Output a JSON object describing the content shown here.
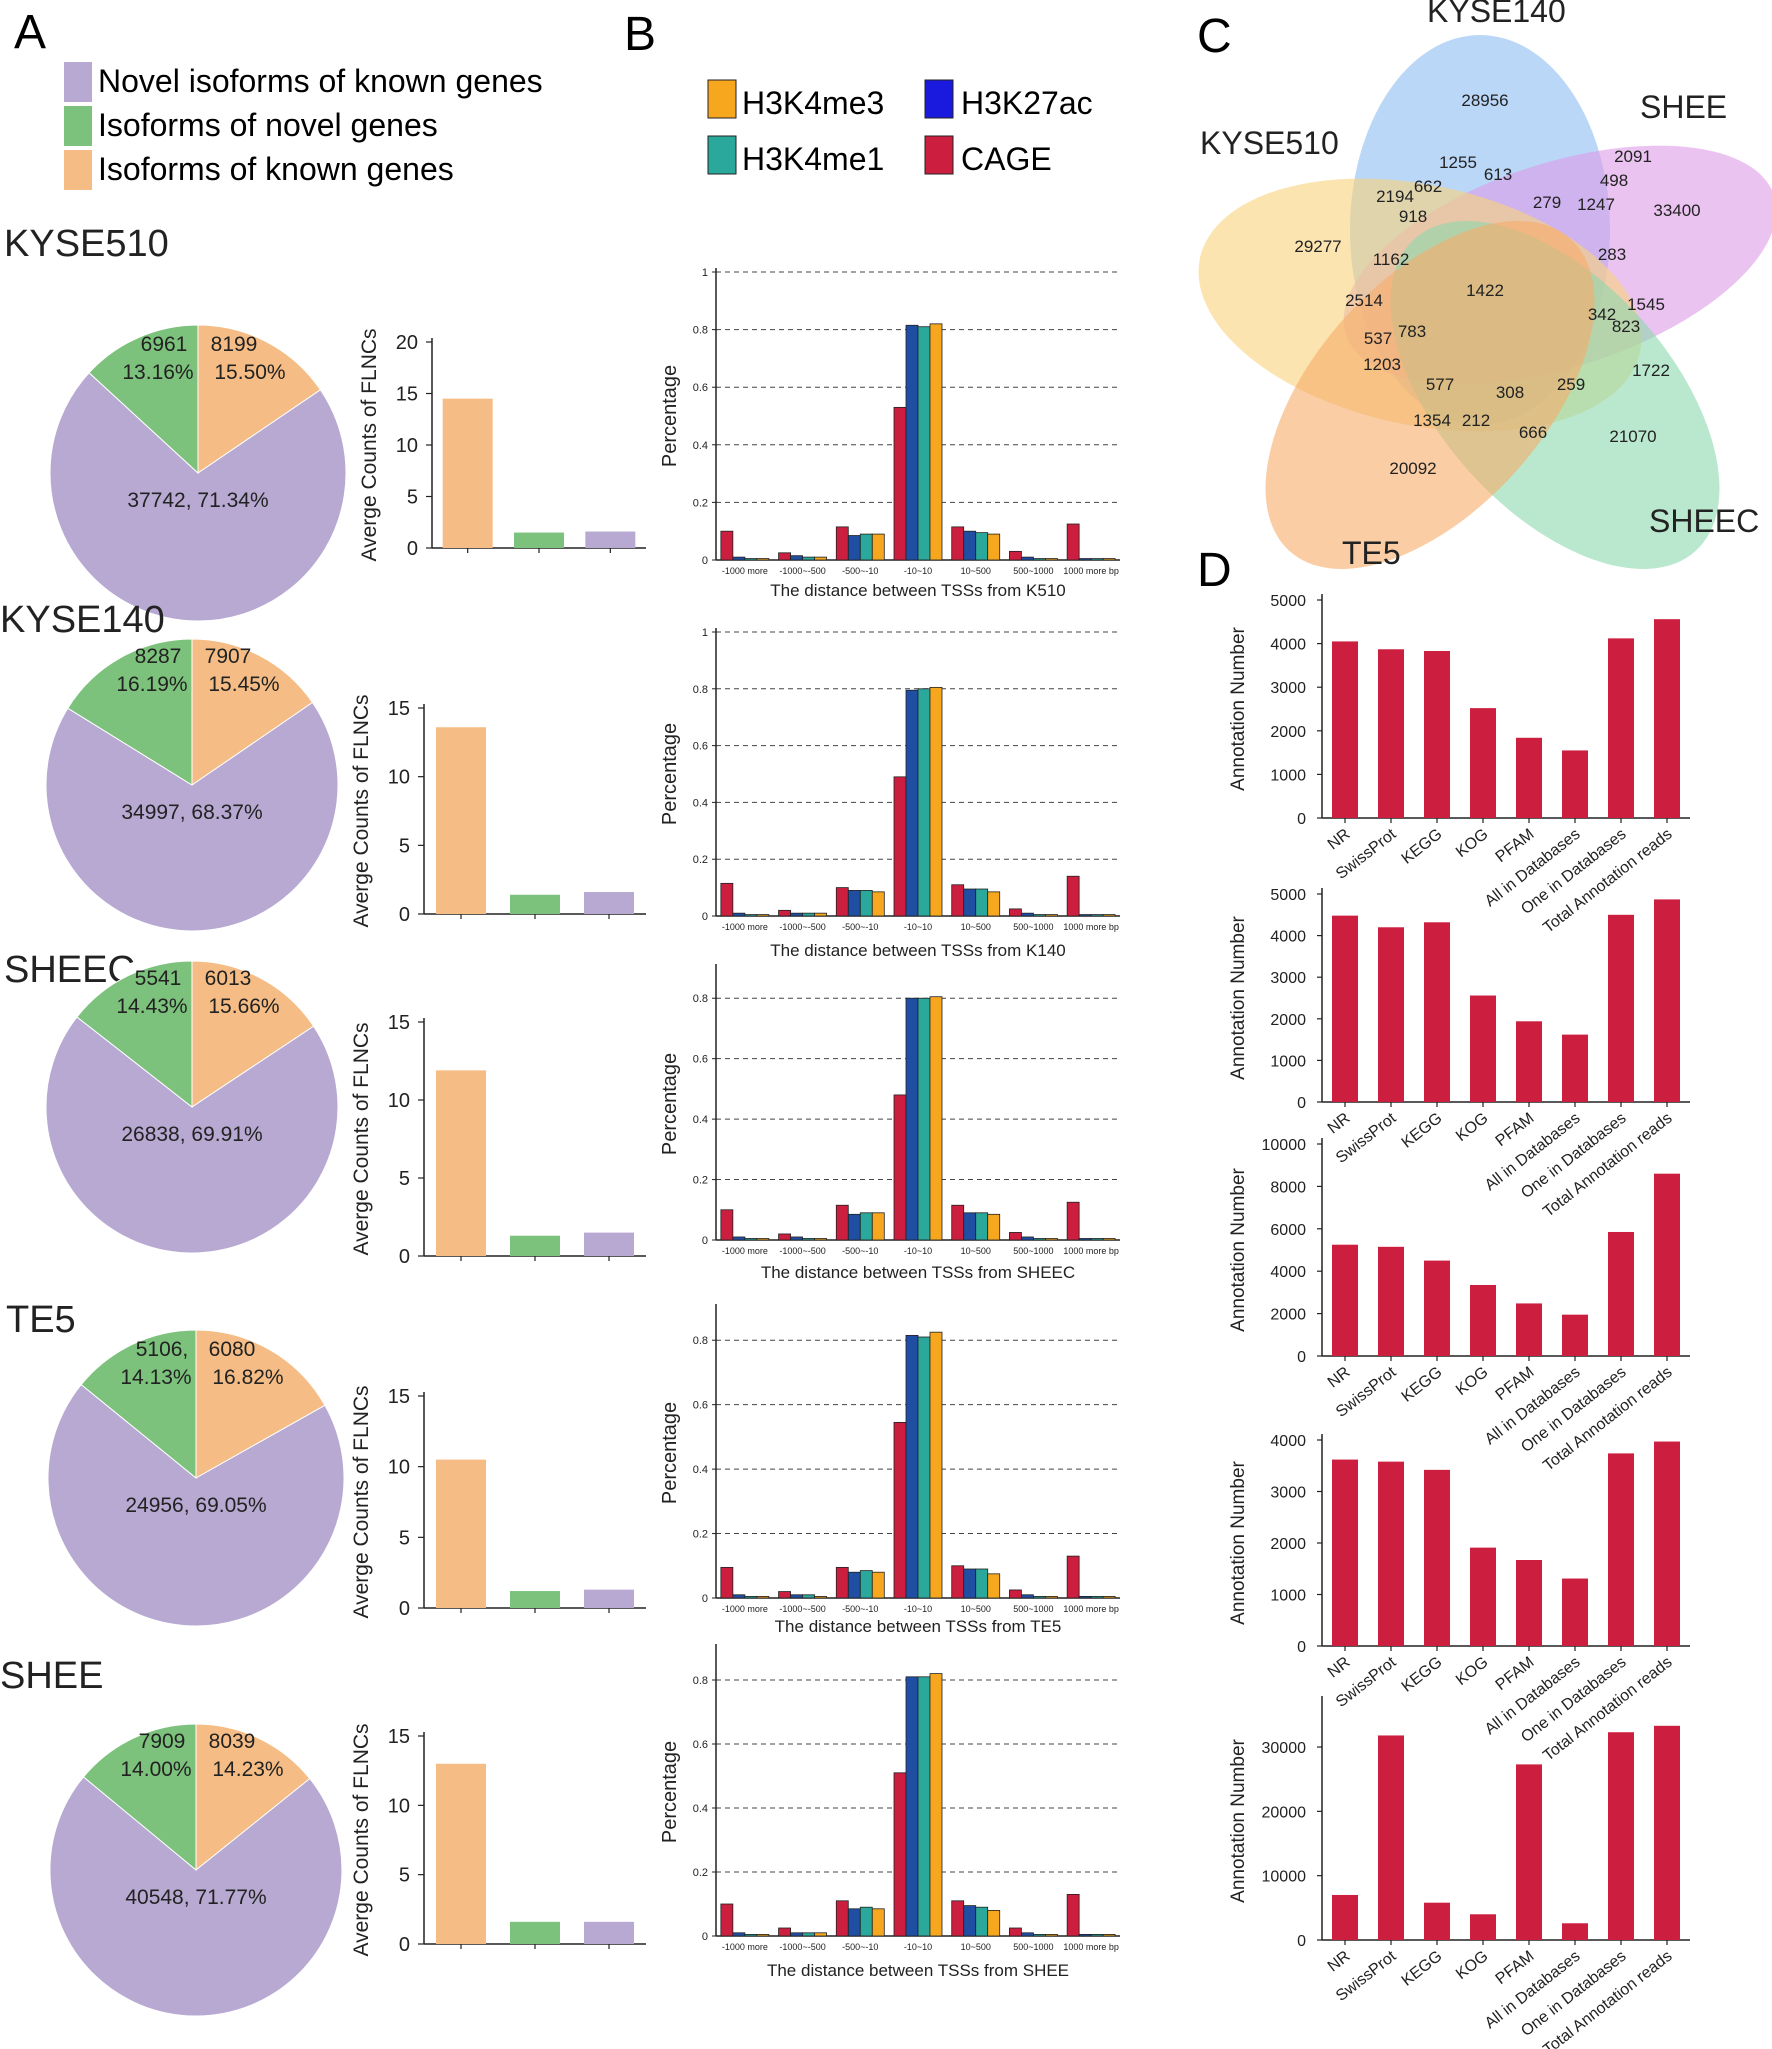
{
  "panel_letters": [
    "A",
    "B",
    "C",
    "D"
  ],
  "colors": {
    "novel_isoforms": "#b7a9d2",
    "novel_genes": "#7cc27c",
    "known_genes": "#f5bd85",
    "h3k4me3": "#f6a71e",
    "h3k27ac": "#1f4ea3",
    "h3k4me1": "#2aa89b",
    "cage": "#cc1f40",
    "annotation_bar": "#cc1f40"
  },
  "legend_a": [
    {
      "label": "Novel isoforms of known genes",
      "color_key": "novel_isoforms"
    },
    {
      "label": "Isoforms of novel genes",
      "color_key": "novel_genes"
    },
    {
      "label": "Isoforms of known genes",
      "color_key": "known_genes"
    }
  ],
  "legend_b": [
    {
      "label": "H3K4me3",
      "color_key": "h3k4me3"
    },
    {
      "label": "H3K27ac",
      "color_key": "h3k27ac"
    },
    {
      "label": "H3K4me1",
      "color_key": "h3k4me1"
    },
    {
      "label": "CAGE",
      "color_key": "cage"
    }
  ],
  "chart_data": [
    {
      "panel": "A",
      "type": "pie",
      "title": "KYSE510",
      "slices": [
        {
          "name": "Novel isoforms of known genes",
          "value": 37742,
          "percent": 71.34,
          "label": "37742, 71.34%"
        },
        {
          "name": "Isoforms of novel genes",
          "value": 6961,
          "percent": 13.16,
          "label_lines": [
            "6961",
            "13.16%"
          ]
        },
        {
          "name": "Isoforms of known genes",
          "value": 8199,
          "percent": 15.5,
          "label_lines": [
            "8199",
            "15.50%"
          ]
        }
      ]
    },
    {
      "panel": "A",
      "type": "bar",
      "ylabel": "Averge Counts of FLNCs",
      "yticks": [
        0,
        5,
        10,
        15,
        20
      ],
      "ylim": [
        0,
        20
      ],
      "categories": [
        "Isoforms of known genes",
        "Isoforms of novel genes",
        "Novel isoforms of known genes"
      ],
      "values": [
        14.5,
        1.5,
        1.6
      ]
    },
    {
      "panel": "A",
      "type": "pie",
      "title": "KYSE140",
      "slices": [
        {
          "name": "Novel isoforms of known genes",
          "value": 34997,
          "percent": 68.37,
          "label": "34997, 68.37%"
        },
        {
          "name": "Isoforms of novel genes",
          "value": 8287,
          "percent": 16.19,
          "label_lines": [
            "8287",
            "16.19%"
          ]
        },
        {
          "name": "Isoforms of known genes",
          "value": 7907,
          "percent": 15.45,
          "label_lines": [
            "7907",
            "15.45%"
          ]
        }
      ]
    },
    {
      "panel": "A",
      "type": "bar",
      "ylabel": "Averge Counts of FLNCs",
      "yticks": [
        0,
        5,
        10,
        15
      ],
      "ylim": [
        0,
        15
      ],
      "categories": [
        "Isoforms of known genes",
        "Isoforms of novel genes",
        "Novel isoforms of known genes"
      ],
      "values": [
        13.6,
        1.4,
        1.6
      ]
    },
    {
      "panel": "A",
      "type": "pie",
      "title": "SHEEC",
      "slices": [
        {
          "name": "Novel isoforms of known genes",
          "value": 26838,
          "percent": 69.91,
          "label": "26838, 69.91%"
        },
        {
          "name": "Isoforms of novel genes",
          "value": 5541,
          "percent": 14.43,
          "label_lines": [
            "5541",
            "14.43%"
          ]
        },
        {
          "name": "Isoforms of known genes",
          "value": 6013,
          "percent": 15.66,
          "label_lines": [
            "6013",
            "15.66%"
          ]
        }
      ]
    },
    {
      "panel": "A",
      "type": "bar",
      "ylabel": "Averge Counts of FLNCs",
      "yticks": [
        0,
        5,
        10,
        15
      ],
      "ylim": [
        0,
        15
      ],
      "categories": [
        "Isoforms of known genes",
        "Isoforms of novel genes",
        "Novel isoforms of known genes"
      ],
      "values": [
        11.9,
        1.3,
        1.5
      ]
    },
    {
      "panel": "A",
      "type": "pie",
      "title": "TE5",
      "slices": [
        {
          "name": "Novel isoforms of known genes",
          "value": 24956,
          "percent": 69.05,
          "label": "24956, 69.05%"
        },
        {
          "name": "Isoforms of novel genes",
          "value": 5106,
          "percent": 14.13,
          "label_lines": [
            "5106,",
            "14.13%"
          ]
        },
        {
          "name": "Isoforms of known genes",
          "value": 6080,
          "percent": 16.82,
          "label_lines": [
            "6080",
            "16.82%"
          ]
        }
      ]
    },
    {
      "panel": "A",
      "type": "bar",
      "ylabel": "Averge Counts of FLNCs",
      "yticks": [
        0,
        5,
        10,
        15
      ],
      "ylim": [
        0,
        15
      ],
      "categories": [
        "Isoforms of known genes",
        "Isoforms of novel genes",
        "Novel isoforms of known genes"
      ],
      "values": [
        10.5,
        1.2,
        1.3
      ]
    },
    {
      "panel": "A",
      "type": "pie",
      "title": "SHEE",
      "slices": [
        {
          "name": "Novel isoforms of known genes",
          "value": 40548,
          "percent": 71.77,
          "label": "40548, 71.77%"
        },
        {
          "name": "Isoforms of novel genes",
          "value": 7909,
          "percent": 14.0,
          "label_lines": [
            "7909",
            "14.00%"
          ]
        },
        {
          "name": "Isoforms of known genes",
          "value": 8039,
          "percent": 14.23,
          "label_lines": [
            "8039",
            "14.23%"
          ]
        }
      ]
    },
    {
      "panel": "A",
      "type": "bar",
      "ylabel": "Averge Counts of FLNCs",
      "yticks": [
        0,
        5,
        10,
        15
      ],
      "ylim": [
        0,
        15
      ],
      "categories": [
        "Isoforms of known genes",
        "Isoforms of novel genes",
        "Novel isoforms of known genes"
      ],
      "values": [
        13.0,
        1.6,
        1.6
      ]
    },
    {
      "panel": "B",
      "type": "bar",
      "xlabel": "The distance between TSSs from K510",
      "ylabel": "Percentage",
      "yticks": [
        "0",
        "0.2",
        "0.4",
        "0.6",
        "0.8",
        "1"
      ],
      "ylim": [
        0,
        1
      ],
      "categories": [
        "-1000 more",
        "-1000~-500",
        "-500~-10",
        "-10~10",
        "10~500",
        "500~1000",
        "1000 more bp"
      ],
      "series": [
        {
          "name": "CAGE",
          "values": [
            0.1,
            0.025,
            0.115,
            0.53,
            0.115,
            0.03,
            0.125
          ]
        },
        {
          "name": "H3K27ac",
          "values": [
            0.01,
            0.015,
            0.085,
            0.815,
            0.1,
            0.01,
            0.005
          ]
        },
        {
          "name": "H3K4me1",
          "values": [
            0.005,
            0.01,
            0.09,
            0.81,
            0.095,
            0.005,
            0.005
          ]
        },
        {
          "name": "H3K4me3",
          "values": [
            0.005,
            0.01,
            0.09,
            0.82,
            0.09,
            0.005,
            0.005
          ]
        }
      ]
    },
    {
      "panel": "B",
      "type": "bar",
      "xlabel": "The distance between TSSs from K140",
      "ylabel": "Percentage",
      "yticks": [
        "0",
        "0.2",
        "0.4",
        "0.6",
        "0.8",
        "1"
      ],
      "ylim": [
        0,
        1
      ],
      "categories": [
        "-1000 more",
        "-1000~-500",
        "-500~-10",
        "-10~10",
        "10~500",
        "500~1000",
        "1000 more bp"
      ],
      "series": [
        {
          "name": "CAGE",
          "values": [
            0.115,
            0.02,
            0.1,
            0.49,
            0.11,
            0.025,
            0.14
          ]
        },
        {
          "name": "H3K27ac",
          "values": [
            0.01,
            0.01,
            0.09,
            0.795,
            0.095,
            0.01,
            0.005
          ]
        },
        {
          "name": "H3K4me1",
          "values": [
            0.005,
            0.01,
            0.09,
            0.8,
            0.095,
            0.005,
            0.005
          ]
        },
        {
          "name": "H3K4me3",
          "values": [
            0.005,
            0.01,
            0.085,
            0.805,
            0.085,
            0.005,
            0.005
          ]
        }
      ]
    },
    {
      "panel": "B",
      "type": "bar",
      "xlabel": "The distance between TSSs from SHEEC",
      "ylabel": "Percentage",
      "yticks": [
        "0",
        "0.2",
        "0.4",
        "0.6",
        "0.8"
      ],
      "ylim": [
        0,
        0.9
      ],
      "categories": [
        "-1000 more",
        "-1000~-500",
        "-500~-10",
        "-10~10",
        "10~500",
        "500~1000",
        "1000 more bp"
      ],
      "series": [
        {
          "name": "CAGE",
          "values": [
            0.1,
            0.02,
            0.115,
            0.48,
            0.115,
            0.025,
            0.125
          ]
        },
        {
          "name": "H3K27ac",
          "values": [
            0.01,
            0.01,
            0.085,
            0.8,
            0.09,
            0.01,
            0.005
          ]
        },
        {
          "name": "H3K4me1",
          "values": [
            0.005,
            0.005,
            0.09,
            0.8,
            0.09,
            0.005,
            0.005
          ]
        },
        {
          "name": "H3K4me3",
          "values": [
            0.005,
            0.005,
            0.09,
            0.805,
            0.085,
            0.005,
            0.005
          ]
        }
      ]
    },
    {
      "panel": "B",
      "type": "bar",
      "xlabel": "The distance between TSSs from TE5",
      "ylabel": "Percentage",
      "yticks": [
        "0",
        "0.2",
        "0.4",
        "0.6",
        "0.8"
      ],
      "ylim": [
        0,
        0.9
      ],
      "categories": [
        "-1000 more",
        "-1000~-500",
        "-500~-10",
        "-10~10",
        "10~500",
        "500~1000",
        "1000 more bp"
      ],
      "series": [
        {
          "name": "CAGE",
          "values": [
            0.095,
            0.02,
            0.095,
            0.545,
            0.1,
            0.025,
            0.13
          ]
        },
        {
          "name": "H3K27ac",
          "values": [
            0.01,
            0.01,
            0.08,
            0.815,
            0.09,
            0.01,
            0.005
          ]
        },
        {
          "name": "H3K4me1",
          "values": [
            0.005,
            0.01,
            0.085,
            0.81,
            0.09,
            0.005,
            0.005
          ]
        },
        {
          "name": "H3K4me3",
          "values": [
            0.005,
            0.005,
            0.08,
            0.825,
            0.075,
            0.005,
            0.005
          ]
        }
      ]
    },
    {
      "panel": "B",
      "type": "bar",
      "xlabel": "The distance between TSSs from SHEE",
      "ylabel": "Percentage",
      "yticks": [
        "0",
        "0.2",
        "0.4",
        "0.6",
        "0.8"
      ],
      "ylim": [
        0,
        0.9
      ],
      "categories": [
        "-1000 more",
        "-1000~-500",
        "-500~-10",
        "-10~10",
        "10~500",
        "500~1000",
        "1000 more bp"
      ],
      "series": [
        {
          "name": "CAGE",
          "values": [
            0.1,
            0.025,
            0.11,
            0.51,
            0.11,
            0.025,
            0.13
          ]
        },
        {
          "name": "H3K27ac",
          "values": [
            0.01,
            0.01,
            0.085,
            0.81,
            0.095,
            0.01,
            0.005
          ]
        },
        {
          "name": "H3K4me1",
          "values": [
            0.005,
            0.01,
            0.09,
            0.81,
            0.09,
            0.005,
            0.005
          ]
        },
        {
          "name": "H3K4me3",
          "values": [
            0.005,
            0.01,
            0.085,
            0.82,
            0.08,
            0.005,
            0.005
          ]
        }
      ]
    },
    {
      "panel": "C",
      "type": "venn",
      "sets": [
        "KYSE140",
        "SHEE",
        "KYSE510",
        "SHEEC",
        "TE5"
      ],
      "region_values": [
        "28956",
        "2091",
        "1255",
        "613",
        "498",
        "2194",
        "662",
        "279",
        "1247",
        "33400",
        "918",
        "29277",
        "1162",
        "283",
        "1422",
        "2514",
        "342",
        "1545",
        "783",
        "823",
        "537",
        "1203",
        "577",
        "308",
        "259",
        "1722",
        "1354",
        "212",
        "666",
        "21070",
        "20092"
      ]
    },
    {
      "panel": "D",
      "type": "bar",
      "ylabel": "Annotation Number",
      "yticks": [
        0,
        1000,
        2000,
        3000,
        4000,
        5000
      ],
      "ylim": [
        0,
        5000
      ],
      "categories": [
        "NR",
        "SwissProt",
        "KEGG",
        "KOG",
        "PFAM",
        "All in Databases",
        "One in Databases",
        "Total Annotation reads"
      ],
      "values": [
        4050,
        3870,
        3830,
        2520,
        1840,
        1550,
        4120,
        4560
      ]
    },
    {
      "panel": "D",
      "type": "bar",
      "ylabel": "Annotation Number",
      "yticks": [
        0,
        1000,
        2000,
        3000,
        4000,
        5000
      ],
      "ylim": [
        0,
        5000
      ],
      "categories": [
        "NR",
        "SwissProt",
        "KEGG",
        "KOG",
        "PFAM",
        "All in Databases",
        "One in Databases",
        "Total Annotation reads"
      ],
      "values": [
        4480,
        4200,
        4320,
        2560,
        1940,
        1620,
        4500,
        4870
      ]
    },
    {
      "panel": "D",
      "type": "bar",
      "ylabel": "Annotation Number",
      "yticks": [
        0,
        2000,
        4000,
        6000,
        8000,
        10000
      ],
      "ylim": [
        0,
        10000
      ],
      "categories": [
        "NR",
        "SwissProt",
        "KEGG",
        "KOG",
        "PFAM",
        "All in Databases",
        "One in Databases",
        "Total Annotation reads"
      ],
      "values": [
        5250,
        5150,
        4500,
        3350,
        2480,
        1950,
        5850,
        8600
      ]
    },
    {
      "panel": "D",
      "type": "bar",
      "ylabel": "Annotation Number",
      "yticks": [
        0,
        1000,
        2000,
        3000,
        4000
      ],
      "ylim": [
        0,
        4000
      ],
      "categories": [
        "NR",
        "SwissProt",
        "KEGG",
        "KOG",
        "PFAM",
        "All in Databases",
        "One in Databases",
        "Total Annotation reads"
      ],
      "values": [
        3620,
        3580,
        3420,
        1910,
        1670,
        1310,
        3740,
        3970
      ]
    },
    {
      "panel": "D",
      "type": "bar",
      "ylabel": "Annotation Number",
      "yticks": [
        0,
        10000,
        20000,
        30000
      ],
      "ylim": [
        0,
        37000
      ],
      "categories": [
        "NR",
        "SwissProt",
        "KEGG",
        "KOG",
        "PFAM",
        "All in Databases",
        "One in Databases",
        "Total Annotation reads"
      ],
      "values": [
        7000,
        31800,
        5800,
        4000,
        27300,
        2600,
        32300,
        33300
      ]
    }
  ]
}
